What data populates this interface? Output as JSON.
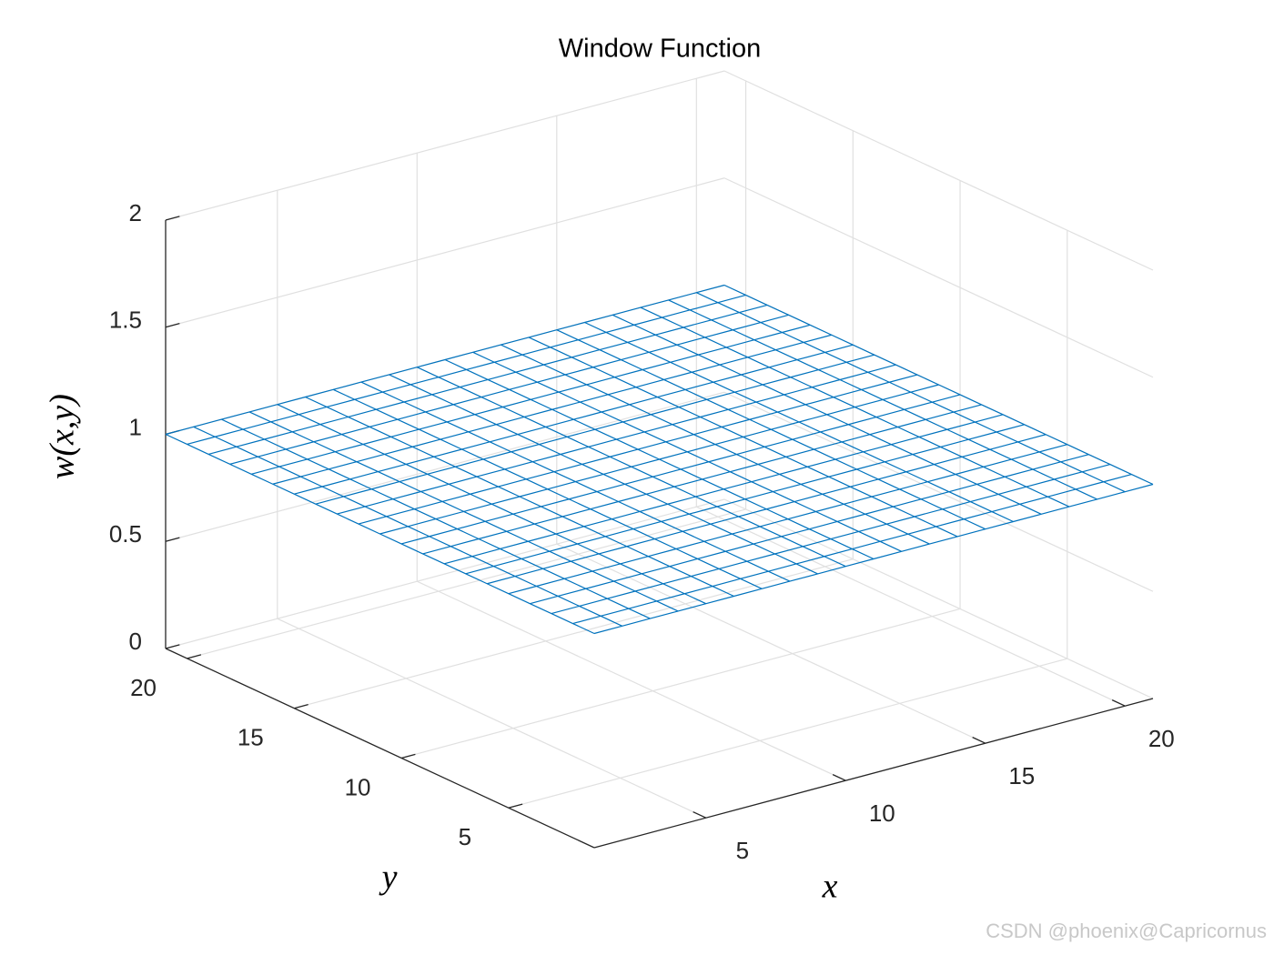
{
  "chart_data": {
    "type": "mesh",
    "title": "Window Function",
    "xlabel": "x",
    "ylabel": "y",
    "zlabel": "w(x,y)",
    "x": [
      1,
      2,
      3,
      4,
      5,
      6,
      7,
      8,
      9,
      10,
      11,
      12,
      13,
      14,
      15,
      16,
      17,
      18,
      19,
      20,
      21
    ],
    "y": [
      1,
      2,
      3,
      4,
      5,
      6,
      7,
      8,
      9,
      10,
      11,
      12,
      13,
      14,
      15,
      16,
      17,
      18,
      19,
      20,
      21
    ],
    "z": [
      [
        1,
        1,
        1,
        1,
        1,
        1,
        1,
        1,
        1,
        1,
        1,
        1,
        1,
        1,
        1,
        1,
        1,
        1,
        1,
        1,
        1
      ],
      [
        1,
        1,
        1,
        1,
        1,
        1,
        1,
        1,
        1,
        1,
        1,
        1,
        1,
        1,
        1,
        1,
        1,
        1,
        1,
        1,
        1
      ],
      [
        1,
        1,
        1,
        1,
        1,
        1,
        1,
        1,
        1,
        1,
        1,
        1,
        1,
        1,
        1,
        1,
        1,
        1,
        1,
        1,
        1
      ],
      [
        1,
        1,
        1,
        1,
        1,
        1,
        1,
        1,
        1,
        1,
        1,
        1,
        1,
        1,
        1,
        1,
        1,
        1,
        1,
        1,
        1
      ],
      [
        1,
        1,
        1,
        1,
        1,
        1,
        1,
        1,
        1,
        1,
        1,
        1,
        1,
        1,
        1,
        1,
        1,
        1,
        1,
        1,
        1
      ],
      [
        1,
        1,
        1,
        1,
        1,
        1,
        1,
        1,
        1,
        1,
        1,
        1,
        1,
        1,
        1,
        1,
        1,
        1,
        1,
        1,
        1
      ],
      [
        1,
        1,
        1,
        1,
        1,
        1,
        1,
        1,
        1,
        1,
        1,
        1,
        1,
        1,
        1,
        1,
        1,
        1,
        1,
        1,
        1
      ],
      [
        1,
        1,
        1,
        1,
        1,
        1,
        1,
        1,
        1,
        1,
        1,
        1,
        1,
        1,
        1,
        1,
        1,
        1,
        1,
        1,
        1
      ],
      [
        1,
        1,
        1,
        1,
        1,
        1,
        1,
        1,
        1,
        1,
        1,
        1,
        1,
        1,
        1,
        1,
        1,
        1,
        1,
        1,
        1
      ],
      [
        1,
        1,
        1,
        1,
        1,
        1,
        1,
        1,
        1,
        1,
        1,
        1,
        1,
        1,
        1,
        1,
        1,
        1,
        1,
        1,
        1
      ],
      [
        1,
        1,
        1,
        1,
        1,
        1,
        1,
        1,
        1,
        1,
        1,
        1,
        1,
        1,
        1,
        1,
        1,
        1,
        1,
        1,
        1
      ],
      [
        1,
        1,
        1,
        1,
        1,
        1,
        1,
        1,
        1,
        1,
        1,
        1,
        1,
        1,
        1,
        1,
        1,
        1,
        1,
        1,
        1
      ],
      [
        1,
        1,
        1,
        1,
        1,
        1,
        1,
        1,
        1,
        1,
        1,
        1,
        1,
        1,
        1,
        1,
        1,
        1,
        1,
        1,
        1
      ],
      [
        1,
        1,
        1,
        1,
        1,
        1,
        1,
        1,
        1,
        1,
        1,
        1,
        1,
        1,
        1,
        1,
        1,
        1,
        1,
        1,
        1
      ],
      [
        1,
        1,
        1,
        1,
        1,
        1,
        1,
        1,
        1,
        1,
        1,
        1,
        1,
        1,
        1,
        1,
        1,
        1,
        1,
        1,
        1
      ],
      [
        1,
        1,
        1,
        1,
        1,
        1,
        1,
        1,
        1,
        1,
        1,
        1,
        1,
        1,
        1,
        1,
        1,
        1,
        1,
        1,
        1
      ],
      [
        1,
        1,
        1,
        1,
        1,
        1,
        1,
        1,
        1,
        1,
        1,
        1,
        1,
        1,
        1,
        1,
        1,
        1,
        1,
        1,
        1
      ],
      [
        1,
        1,
        1,
        1,
        1,
        1,
        1,
        1,
        1,
        1,
        1,
        1,
        1,
        1,
        1,
        1,
        1,
        1,
        1,
        1,
        1
      ],
      [
        1,
        1,
        1,
        1,
        1,
        1,
        1,
        1,
        1,
        1,
        1,
        1,
        1,
        1,
        1,
        1,
        1,
        1,
        1,
        1,
        1
      ],
      [
        1,
        1,
        1,
        1,
        1,
        1,
        1,
        1,
        1,
        1,
        1,
        1,
        1,
        1,
        1,
        1,
        1,
        1,
        1,
        1,
        1
      ],
      [
        1,
        1,
        1,
        1,
        1,
        1,
        1,
        1,
        1,
        1,
        1,
        1,
        1,
        1,
        1,
        1,
        1,
        1,
        1,
        1,
        1
      ]
    ],
    "color": "#0072bd",
    "xlim": [
      1,
      21
    ],
    "ylim": [
      1,
      21
    ],
    "zlim": [
      0,
      2
    ],
    "xticks": [
      5,
      10,
      15,
      20
    ],
    "yticks": [
      5,
      10,
      15,
      20
    ],
    "zticks": [
      0,
      0.5,
      1,
      1.5,
      2
    ],
    "grid": true
  },
  "watermark": "CSDN @phoenix@Capricornus"
}
